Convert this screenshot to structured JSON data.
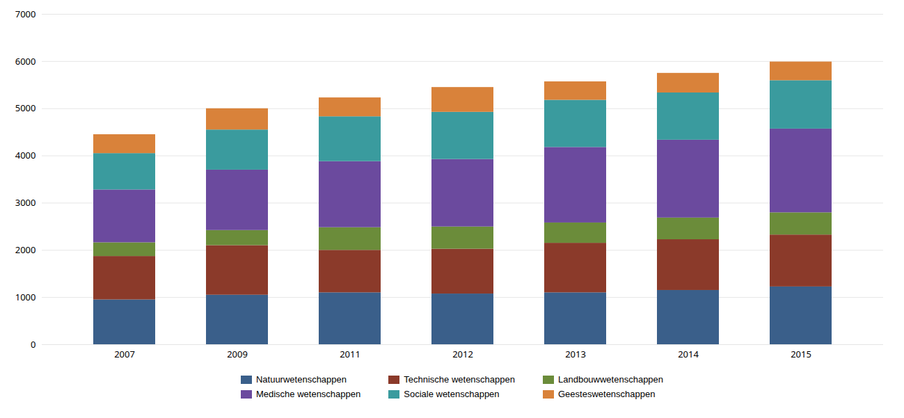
{
  "chart_data": {
    "type": "bar",
    "stacked": true,
    "categories": [
      "2007",
      "2009",
      "2011",
      "2012",
      "2013",
      "2014",
      "2015"
    ],
    "series": [
      {
        "name": "Natuurwetenschappen",
        "color": "#3A5F8A",
        "values": [
          950,
          1050,
          1100,
          1075,
          1100,
          1150,
          1225
        ]
      },
      {
        "name": "Technische wetenschappen",
        "color": "#8B3A2A",
        "values": [
          920,
          1050,
          900,
          950,
          1050,
          1075,
          1100
        ]
      },
      {
        "name": "Landbouwwetenschappen",
        "color": "#6B8C3A",
        "values": [
          290,
          320,
          480,
          470,
          430,
          460,
          470
        ]
      },
      {
        "name": "Medische wetenschappen",
        "color": "#6B4A9E",
        "values": [
          1120,
          1280,
          1400,
          1430,
          1600,
          1650,
          1775
        ]
      },
      {
        "name": "Sociale wetenschappen",
        "color": "#3A9B9E",
        "values": [
          770,
          850,
          950,
          1000,
          1000,
          1000,
          1025
        ]
      },
      {
        "name": "Geesteswetenschappen",
        "color": "#D9823A",
        "values": [
          400,
          450,
          400,
          525,
          390,
          415,
          395
        ]
      }
    ],
    "ylim": [
      0,
      7000
    ],
    "yticks": [
      0,
      1000,
      2000,
      3000,
      4000,
      5000,
      6000,
      7000
    ],
    "grid": true,
    "legend": "bottom"
  }
}
